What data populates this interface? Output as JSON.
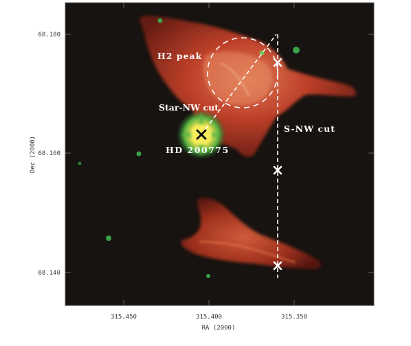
{
  "axes": {
    "xlabel": "RA (2000)",
    "ylabel": "Dec (2000)",
    "x_ticks": [
      "315.450",
      "315.400",
      "315.350"
    ],
    "y_ticks": [
      "68.180",
      "68.160",
      "68.140"
    ]
  },
  "annotations": {
    "h2_peak": "H2 peak",
    "star_nw_cut": "Star-NW cut",
    "s_nw_cut": "S-NW cut",
    "star_name": "HD 200775"
  },
  "colors": {
    "background": "#171310",
    "nebula": "#c8402a",
    "star_core": "#f3e85a",
    "star_halo": "#3aa04a",
    "marker": "#ffffff"
  }
}
